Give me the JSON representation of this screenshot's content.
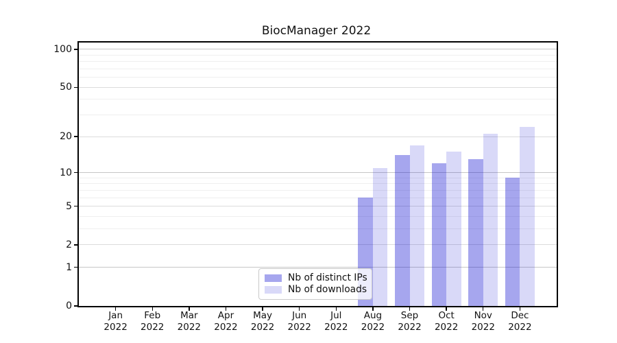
{
  "chart_data": {
    "type": "bar",
    "title": "BiocManager 2022",
    "categories": [
      "Jan",
      "Feb",
      "Mar",
      "Apr",
      "May",
      "Jun",
      "Jul",
      "Aug",
      "Sep",
      "Oct",
      "Nov",
      "Dec"
    ],
    "x_tick_year": "2022",
    "series": [
      {
        "name": "Nb of distinct IPs",
        "color": "rgba(0,0,205,0.35)",
        "color_on_white": "#a6a6ed",
        "values": [
          0,
          0,
          0,
          0,
          0,
          0,
          0,
          6,
          14,
          12,
          13,
          9
        ]
      },
      {
        "name": "Nb of downloads",
        "color": "rgba(0,0,205,0.15)",
        "color_on_white": "#d9d9f7",
        "values": [
          0,
          0,
          0,
          0,
          0,
          0,
          0,
          11,
          17,
          15,
          21,
          24
        ]
      }
    ],
    "y_scale": "log1p",
    "y_ticks": [
      0,
      1,
      2,
      5,
      10,
      20,
      50,
      100
    ],
    "y_gridlines": {
      "power": [
        1,
        10,
        100
      ],
      "mid": [
        2,
        5,
        20,
        50
      ],
      "minor": [
        3,
        4,
        6,
        7,
        8,
        9,
        30,
        40,
        60,
        70,
        80,
        90
      ]
    },
    "ylim": [
      0,
      113
    ],
    "xlim": [
      -1,
      12
    ],
    "bar_width_units": 0.4,
    "grid": true,
    "legend_position": "lower center"
  },
  "colors": {
    "background": "#ffffff",
    "spine": "#000000",
    "grid_power": "#c6c6c6",
    "grid_mid": "#dcdcdc",
    "grid_minor": "#efefef",
    "text": "#111111",
    "legend_border": "#c9c9c9",
    "legend_bg": "rgba(255,255,255,0.8)"
  }
}
